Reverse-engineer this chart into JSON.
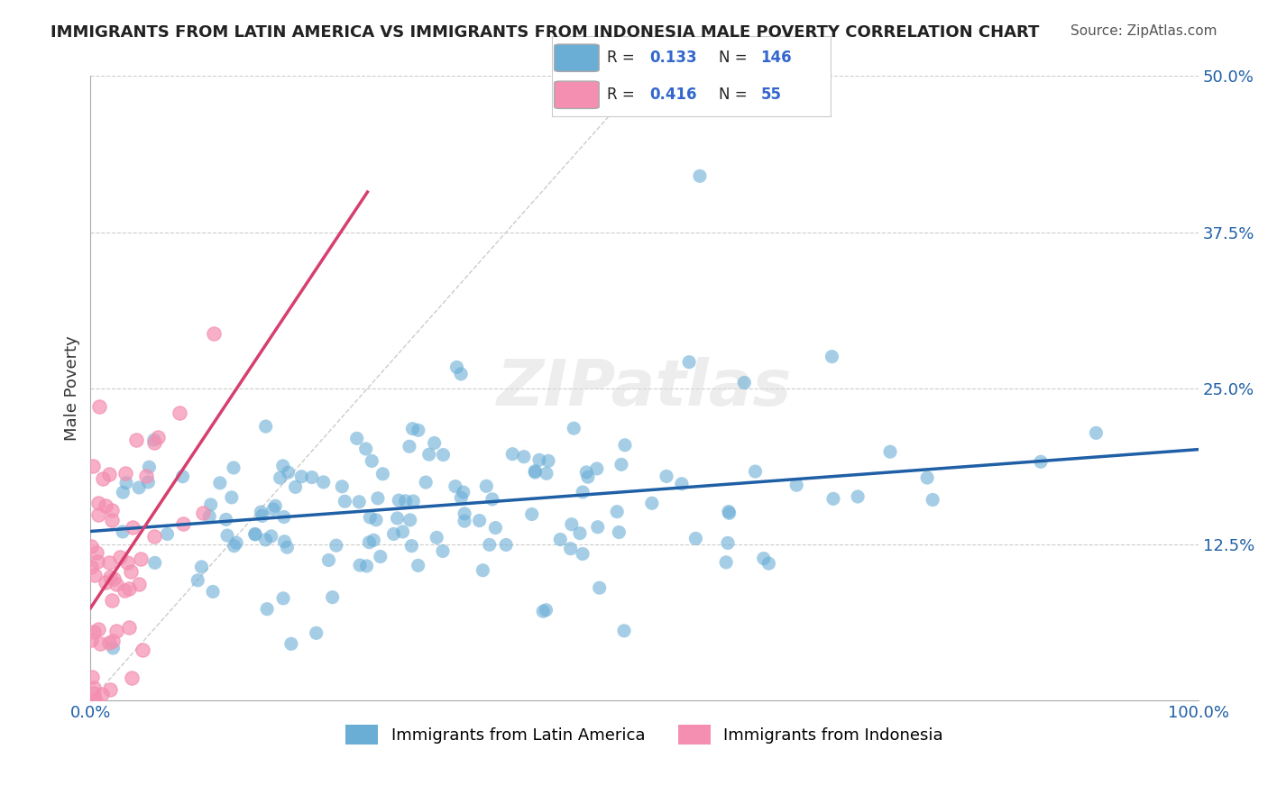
{
  "title": "IMMIGRANTS FROM LATIN AMERICA VS IMMIGRANTS FROM INDONESIA MALE POVERTY CORRELATION CHART",
  "source": "Source: ZipAtlas.com",
  "xlabel": "",
  "ylabel": "Male Poverty",
  "xlim": [
    0,
    1.0
  ],
  "ylim": [
    0,
    0.5
  ],
  "yticks": [
    0,
    0.125,
    0.25,
    0.375,
    0.5
  ],
  "ytick_labels": [
    "",
    "12.5%",
    "25.0%",
    "37.5%",
    "50.0%"
  ],
  "xticks": [
    0,
    0.25,
    0.5,
    0.75,
    1.0
  ],
  "xtick_labels": [
    "0.0%",
    "",
    "",
    "",
    "100.0%"
  ],
  "blue_R": 0.133,
  "blue_N": 146,
  "pink_R": 0.416,
  "pink_N": 55,
  "blue_color": "#6aaed6",
  "pink_color": "#f48fb1",
  "blue_line_color": "#1f5fa6",
  "pink_line_color": "#d63f6e",
  "watermark": "ZIPatlas",
  "background_color": "#ffffff",
  "legend_label_blue": "Immigrants from Latin America",
  "legend_label_pink": "Immigrants from Indonesia"
}
